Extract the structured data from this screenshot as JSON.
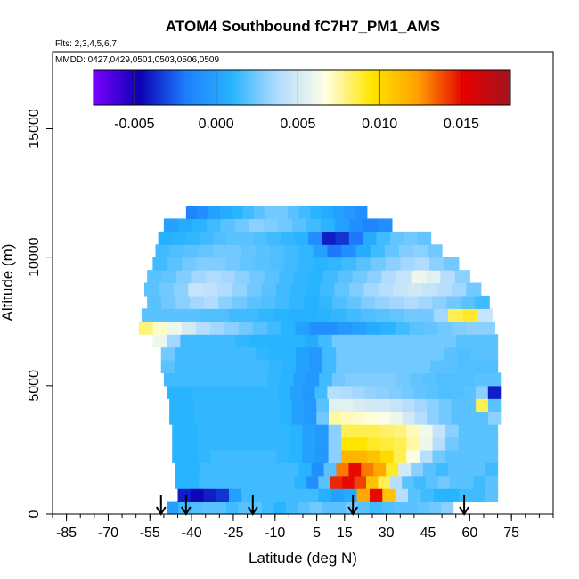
{
  "chart_data": {
    "type": "heatmap",
    "title": "ATOM4 Southbound fC7H7_PM1_AMS",
    "flights_note": "Flts: 2,3,4,5,6,7",
    "dates_note": "MMDD: 0427,0429,0501,0503,0506,0509",
    "xlabel": "Latitude (deg N)",
    "ylabel": "Altitude (m)",
    "xlim": [
      -90,
      90
    ],
    "ylim": [
      0,
      18000
    ],
    "x_ticks": [
      -85,
      -70,
      -55,
      -40,
      -25,
      -10,
      5,
      15,
      30,
      45,
      60,
      75
    ],
    "y_ticks": [
      0,
      5000,
      10000,
      15000
    ],
    "colorbar": {
      "min": -0.0075,
      "max": 0.018,
      "ticks": [
        -0.005,
        0.0,
        0.005,
        0.01,
        0.015
      ],
      "tick_labels": [
        "-0.005",
        "0.000",
        "0.005",
        "0.010",
        "0.015"
      ],
      "colors": [
        "#7b00ff",
        "#0a00b4",
        "#1e7fff",
        "#28b4ff",
        "#b4dcff",
        "#ffffe6",
        "#ffe600",
        "#ffa000",
        "#e60000",
        "#a0141e"
      ]
    },
    "arrows_latitude": [
      -51,
      -42,
      -18,
      18,
      58
    ],
    "altitude_levels": [
      500,
      1000,
      1500,
      2000,
      2500,
      3000,
      3500,
      4000,
      4500,
      5000,
      5500,
      6000,
      6500,
      7000,
      7500,
      8000,
      8500,
      9000,
      9500,
      10000,
      10500,
      11000,
      11500,
      12000
    ],
    "lat_range_by_altitude": [
      [
        -49,
        54
      ],
      [
        -45,
        70
      ],
      [
        -46,
        70
      ],
      [
        -46,
        70
      ],
      [
        -47,
        70
      ],
      [
        -47,
        70
      ],
      [
        -47,
        70
      ],
      [
        -48,
        71
      ],
      [
        -48,
        71
      ],
      [
        -49,
        71
      ],
      [
        -50,
        71
      ],
      [
        -51,
        70
      ],
      [
        -51,
        70
      ],
      [
        -54,
        70
      ],
      [
        -59,
        69
      ],
      [
        -58,
        68
      ],
      [
        -56,
        67
      ],
      [
        -57,
        64
      ],
      [
        -56,
        60
      ],
      [
        -54,
        56
      ],
      [
        -53,
        50
      ],
      [
        -52,
        46
      ],
      [
        -50,
        32
      ],
      [
        -42,
        23
      ]
    ],
    "concentration_cells": [
      {
        "alt": 500,
        "values": [
          0.0,
          0.0015,
          0.0018,
          0.002,
          0.002,
          0.0015,
          0.002,
          0.002,
          0.0015,
          0.001,
          0.0015,
          0.002,
          0.0025,
          0.002,
          0.002,
          0.0025,
          0.002,
          0.0015,
          0.0018,
          0.002,
          0.002,
          0.0022,
          0.0025,
          0.003
        ]
      },
      {
        "alt": 1000,
        "values": [
          -0.004,
          -0.0045,
          -0.004,
          -0.0035,
          0.0,
          0.0015,
          0.0015,
          0.0015,
          0.0015,
          0.0015,
          0.0015,
          0.0008,
          0.0,
          0.0005,
          0.012,
          0.015,
          0.011,
          0.004,
          0.002,
          0.0015,
          0.001,
          0.001,
          0.0015,
          0.0015,
          0.002
        ]
      },
      {
        "alt": 1500,
        "values": [
          0.001,
          0.001,
          0.0015,
          0.0015,
          0.0015,
          0.0015,
          0.0015,
          0.0015,
          0.0015,
          0.0015,
          0.001,
          -0.001,
          0.002,
          0.0145,
          0.015,
          0.014,
          0.011,
          0.0085,
          0.004,
          0.002,
          0.0015,
          0.002,
          0.0025,
          0.002,
          0.002,
          0.0015,
          0.002
        ]
      },
      {
        "alt": 2000,
        "values": [
          0.001,
          0.001,
          0.0015,
          0.0015,
          0.0015,
          0.0015,
          0.0015,
          0.0015,
          0.0015,
          0.0015,
          0.001,
          -0.001,
          0.002,
          0.013,
          0.015,
          0.013,
          0.012,
          0.009,
          0.005,
          0.003,
          0.002,
          0.0015,
          0.002,
          0.002,
          0.002,
          0.0015
        ]
      },
      {
        "alt": 2500,
        "values": [
          0.001,
          0.001,
          0.0012,
          0.0015,
          0.0015,
          0.0015,
          0.0015,
          0.0015,
          0.0012,
          0.001,
          0.0,
          -0.0005,
          0.003,
          0.0115,
          0.0115,
          0.011,
          0.01,
          0.0085,
          0.0065,
          0.004,
          0.0025,
          0.002,
          0.002,
          0.002,
          0.002
        ]
      },
      {
        "alt": 3000,
        "values": [
          0.001,
          0.001,
          0.0012,
          0.0012,
          0.0012,
          0.0012,
          0.0012,
          0.0012,
          0.0012,
          0.001,
          0.0,
          -0.0005,
          0.003,
          0.0095,
          0.0095,
          0.009,
          0.0088,
          0.0085,
          0.0075,
          0.006,
          0.004,
          0.0025,
          0.002,
          0.002,
          0.002
        ]
      },
      {
        "alt": 3500,
        "values": [
          0.001,
          0.001,
          0.0012,
          0.0012,
          0.0012,
          0.0012,
          0.0012,
          0.0012,
          0.0012,
          0.001,
          0.0,
          -0.0005,
          0.003,
          0.0085,
          0.0085,
          0.0085,
          0.0082,
          0.008,
          0.0072,
          0.0062,
          0.0045,
          0.003,
          0.002,
          0.002,
          0.002
        ]
      },
      {
        "alt": 4000,
        "values": [
          0.001,
          0.001,
          0.0012,
          0.0012,
          0.0012,
          0.0012,
          0.0012,
          0.0012,
          0.0012,
          0.001,
          0.0,
          -0.0005,
          0.0025,
          0.0075,
          0.0072,
          0.007,
          0.0068,
          0.0065,
          0.006,
          0.005,
          0.004,
          0.003,
          0.0025,
          0.002,
          0.002,
          0.002,
          0.003
        ]
      },
      {
        "alt": 4500,
        "values": [
          0.001,
          0.001,
          0.0012,
          0.0012,
          0.0012,
          0.0012,
          0.0012,
          0.0012,
          0.0012,
          0.001,
          0.0,
          -0.0005,
          0.002,
          0.0055,
          0.0055,
          0.0052,
          0.005,
          0.0048,
          0.0045,
          0.004,
          0.0035,
          0.003,
          0.0025,
          0.002,
          0.002,
          0.0085,
          0.002
        ]
      },
      {
        "alt": 5000,
        "values": [
          0.001,
          0.001,
          0.0012,
          0.0012,
          0.0012,
          0.0012,
          0.0012,
          0.0012,
          0.0012,
          0.001,
          0.0,
          -0.0005,
          0.0015,
          0.004,
          0.0038,
          0.0035,
          0.0032,
          0.003,
          0.0028,
          0.0025,
          0.0022,
          0.002,
          0.0018,
          0.0018,
          0.002,
          0.003,
          -0.004
        ]
      },
      {
        "alt": 5500,
        "values": [
          0.0015,
          0.0015,
          0.0015,
          0.0015,
          0.0015,
          0.0015,
          0.0015,
          0.0015,
          0.0012,
          0.001,
          0.0,
          -0.0005,
          0.0015,
          0.0025,
          0.0028,
          0.0028,
          0.0028,
          0.0028,
          0.0025,
          0.0022,
          0.002,
          0.0018,
          0.0018,
          0.0018,
          0.002,
          0.002
        ]
      },
      {
        "alt": 6000,
        "values": [
          0.002,
          0.0015,
          0.0015,
          0.0015,
          0.0015,
          0.0015,
          0.0015,
          0.0015,
          0.0012,
          0.001,
          0.0,
          -0.0005,
          0.0015,
          0.0025,
          0.0025,
          0.0025,
          0.0025,
          0.0025,
          0.0025,
          0.0025,
          0.002,
          0.002,
          0.0018,
          0.0018,
          0.0018
        ]
      },
      {
        "alt": 6500,
        "values": [
          0.0025,
          0.0015,
          0.0015,
          0.0015,
          0.0015,
          0.0015,
          0.0015,
          0.0012,
          0.001,
          0.001,
          0.0,
          -0.0005,
          0.0015,
          0.0025,
          0.0025,
          0.0025,
          0.0025,
          0.0025,
          0.0025,
          0.0025,
          0.0025,
          0.002,
          0.0018,
          0.002,
          0.002
        ]
      },
      {
        "alt": 7000,
        "values": [
          0.006,
          0.0035,
          0.0015,
          0.0015,
          0.0015,
          0.0015,
          0.0012,
          0.001,
          0.001,
          0.001,
          0.001,
          0.0005,
          0.0015,
          0.0025,
          0.0025,
          0.0025,
          0.0025,
          0.0025,
          0.0025,
          0.0025,
          0.0025,
          0.0025,
          0.002,
          0.002,
          0.002
        ]
      },
      {
        "alt": 7500,
        "values": [
          0.008,
          0.007,
          0.006,
          0.005,
          0.004,
          0.0035,
          0.003,
          0.0025,
          0.002,
          0.0015,
          0.001,
          0.0,
          -0.001,
          -0.001,
          -0.0005,
          0.0,
          0.0005,
          0.001,
          0.0015,
          0.002,
          0.0022,
          0.0025,
          0.0028,
          0.003,
          0.003
        ]
      },
      {
        "alt": 8000,
        "values": [
          0.002,
          0.002,
          0.002,
          0.002,
          0.0018,
          0.0018,
          0.0015,
          0.0015,
          0.0012,
          0.001,
          0.0008,
          0.0008,
          0.001,
          0.0012,
          0.0015,
          0.0018,
          0.002,
          0.0022,
          0.0025,
          0.0025,
          0.0035,
          0.0085,
          0.009,
          0.0045
        ]
      },
      {
        "alt": 8500,
        "values": [
          0.002,
          0.0025,
          0.003,
          0.0035,
          0.0038,
          0.003,
          0.0025,
          0.002,
          0.0018,
          0.0015,
          0.0012,
          0.0008,
          0.0012,
          0.0018,
          0.0022,
          0.0028,
          0.0032,
          0.0035,
          0.0038,
          0.0035,
          0.003,
          0.0025,
          0.002,
          0.0015
        ]
      },
      {
        "alt": 9000,
        "values": [
          0.002,
          0.0025,
          0.003,
          0.0045,
          0.0042,
          0.0038,
          0.0032,
          0.0025,
          0.002,
          0.0015,
          0.0012,
          0.001,
          0.0015,
          0.0022,
          0.0028,
          0.0035,
          0.004,
          0.0045,
          0.0048,
          0.0045,
          0.004,
          0.0035,
          0.0025
        ]
      },
      {
        "alt": 9500,
        "values": [
          0.002,
          0.0022,
          0.0028,
          0.0035,
          0.0038,
          0.0035,
          0.003,
          0.0025,
          0.002,
          0.0015,
          0.0012,
          0.001,
          0.0015,
          0.002,
          0.0025,
          0.003,
          0.0038,
          0.0045,
          0.006,
          0.0055,
          0.004,
          0.003
        ]
      },
      {
        "alt": 10000,
        "values": [
          0.0015,
          0.002,
          0.0025,
          0.0028,
          0.0028,
          0.0025,
          0.0022,
          0.002,
          0.0018,
          0.0015,
          0.0012,
          0.001,
          0.0012,
          0.0015,
          0.002,
          0.0025,
          0.003,
          0.0035,
          0.0038,
          0.003,
          0.0025
        ]
      },
      {
        "alt": 10500,
        "values": [
          0.0015,
          0.0018,
          0.002,
          0.0022,
          0.0025,
          0.0025,
          0.0022,
          0.002,
          0.0018,
          0.0015,
          0.0012,
          0.0,
          -0.002,
          -0.001,
          0.0005,
          0.0015,
          0.0022,
          0.0028,
          0.003,
          0.0025
        ]
      },
      {
        "alt": 11000,
        "values": [
          0.0008,
          0.001,
          0.0012,
          0.0015,
          0.0018,
          0.002,
          0.002,
          0.0018,
          0.0015,
          0.0012,
          0.001,
          -0.001,
          -0.004,
          -0.0035,
          -0.002,
          0.0005,
          0.0015,
          0.0022,
          0.0025,
          0.0022
        ]
      },
      {
        "alt": 11500,
        "values": [
          0.0,
          0.0005,
          0.001,
          0.0015,
          0.002,
          0.0025,
          0.003,
          0.0028,
          0.0025,
          0.002,
          0.0015,
          0.001,
          0.0,
          -0.001,
          -0.0015,
          -0.001
        ]
      },
      {
        "alt": 12000,
        "values": [
          -0.0015,
          -0.001,
          0.0,
          0.0005,
          0.001,
          0.0015,
          0.002,
          0.0025,
          0.0025,
          0.002,
          0.0015,
          0.001,
          0.0005,
          0.0,
          -0.0005,
          -0.001
        ]
      }
    ]
  }
}
